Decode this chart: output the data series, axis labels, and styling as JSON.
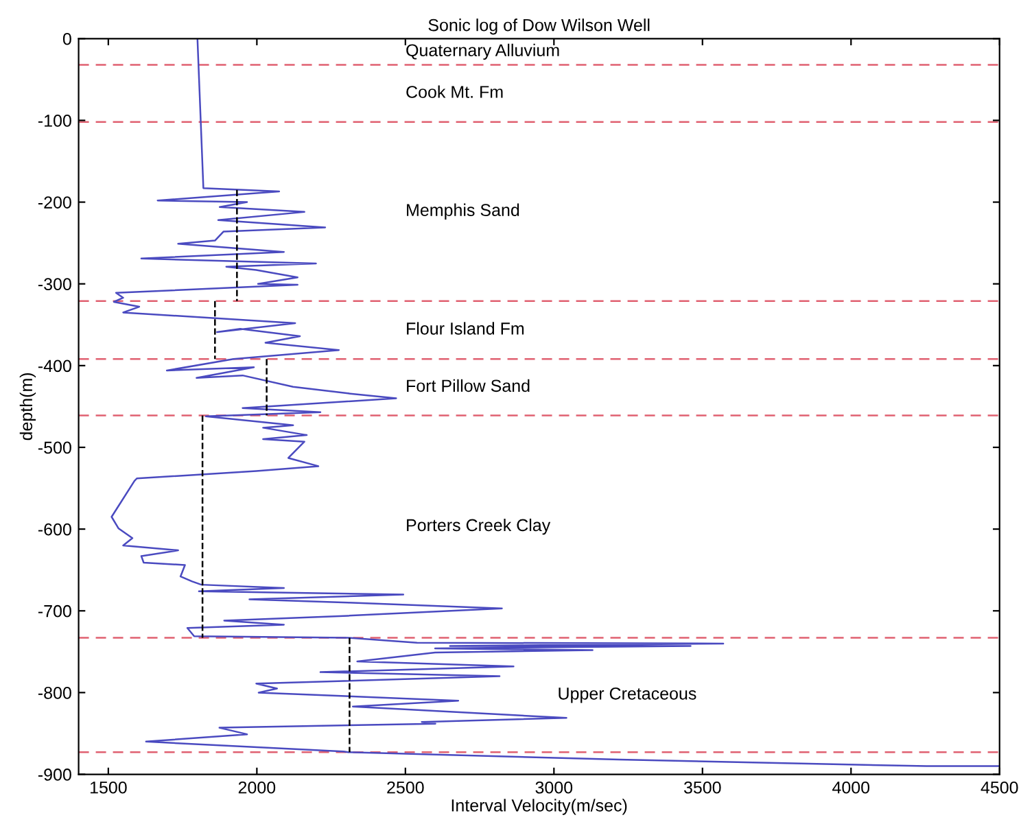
{
  "chart_data": {
    "type": "line",
    "title": "Sonic log of Dow Wilson Well",
    "xlabel": "Interval Velocity(m/sec)",
    "ylabel": "depth(m)",
    "xlim": [
      1400,
      4500
    ],
    "xticks": [
      1500,
      2000,
      2500,
      3000,
      3500,
      4000,
      4500
    ],
    "ylim": [
      -900,
      0
    ],
    "yticks": [
      -900,
      -800,
      -700,
      -600,
      -500,
      -400,
      -300,
      -200,
      -100,
      0
    ],
    "grid": false,
    "legend": false,
    "marker": "none",
    "series": [
      {
        "color": "#4a4ac0",
        "line_style": "solid",
        "x": [
          1800,
          1820,
          2075,
          1666,
          1967,
          1875,
          2160,
          1870,
          2230,
          1888,
          1859,
          1735,
          2091,
          1611,
          2199,
          1897,
          1998,
          2137,
          2004,
          2137,
          1526,
          1550,
          1519,
          1604,
          1550,
          2129,
          1866,
          1944,
          2145,
          2029,
          2276,
          1921,
          1697,
          1990,
          1797,
          1952,
          2122,
          2307,
          2469,
          1952,
          2214,
          1828,
          2122,
          2021,
          2168,
          2021,
          2160,
          2106,
          2207,
          1998,
          1596,
          1588,
          1511,
          1534,
          1581,
          1550,
          1735,
          1611,
          1619,
          1758,
          1743,
          1782,
          1813,
          2091,
          1805,
          2493,
          1975,
          2307,
          2825,
          2307,
          1890,
          2091,
          1766,
          1789,
          2307,
          2539,
          3570,
          2650,
          3460,
          2600,
          3130,
          2600,
          2338,
          2864,
          2214,
          2817,
          1998,
          2068,
          2006,
          2678,
          2323,
          3042,
          2555,
          2601,
          1874,
          1967,
          1627,
          2292,
          2307,
          3220,
          4254,
          4500
        ],
        "values": [
          0,
          -183,
          -187,
          -198,
          -200,
          -206,
          -212,
          -222,
          -231,
          -236,
          -247,
          -251,
          -261,
          -269,
          -275,
          -279,
          -283,
          -292,
          -300,
          -301,
          -311,
          -317,
          -322,
          -328,
          -335,
          -348,
          -359,
          -355,
          -364,
          -372,
          -381,
          -392,
          -406,
          -402,
          -415,
          -412,
          -426,
          -434,
          -440,
          -452,
          -457,
          -462,
          -473,
          -476,
          -485,
          -490,
          -493,
          -513,
          -523,
          -529,
          -538,
          -541,
          -585,
          -599,
          -611,
          -620,
          -626,
          -633,
          -641,
          -644,
          -658,
          -664,
          -668,
          -672,
          -676,
          -680,
          -686,
          -690,
          -697,
          -706,
          -712,
          -717,
          -721,
          -731,
          -733,
          -739,
          -740,
          -743,
          -743,
          -746,
          -748,
          -751,
          -762,
          -768,
          -775,
          -780,
          -789,
          -795,
          -800,
          -810,
          -817,
          -831,
          -836,
          -838,
          -843,
          -851,
          -860,
          -872,
          -873,
          -882,
          -890,
          -890
        ]
      },
      {
        "color": "#000000",
        "line_style": "dashed",
        "x": [
          1933,
          1933
        ],
        "values": [
          -185,
          -321
        ]
      },
      {
        "color": "#000000",
        "line_style": "dashed",
        "x": [
          1859,
          1859
        ],
        "values": [
          -321,
          -392
        ]
      },
      {
        "color": "#000000",
        "line_style": "dashed",
        "x": [
          2033,
          2033
        ],
        "values": [
          -392,
          -461
        ]
      },
      {
        "color": "#000000",
        "line_style": "dashed",
        "x": [
          1817,
          1817
        ],
        "values": [
          -461,
          -733
        ]
      },
      {
        "color": "#000000",
        "line_style": "dashed",
        "x": [
          2312,
          2312
        ],
        "values": [
          -733,
          -873
        ]
      }
    ],
    "ref_lines": [
      {
        "axis": "y",
        "value": -32,
        "color": "#e06070",
        "line_style": "dashed"
      },
      {
        "axis": "y",
        "value": -102,
        "color": "#e06070",
        "line_style": "dashed"
      },
      {
        "axis": "y",
        "value": -321,
        "color": "#e06070",
        "line_style": "dashed"
      },
      {
        "axis": "y",
        "value": -392,
        "color": "#e06070",
        "line_style": "dashed"
      },
      {
        "axis": "y",
        "value": -461,
        "color": "#e06070",
        "line_style": "dashed"
      },
      {
        "axis": "y",
        "value": -733,
        "color": "#e06070",
        "line_style": "dashed"
      },
      {
        "axis": "y",
        "value": -873,
        "color": "#e06070",
        "line_style": "dashed"
      }
    ],
    "annotations": [
      "Quaternary Alluvium",
      "Cook Mt. Fm",
      "Memphis Sand",
      "Flour Island Fm",
      "Fort Pillow Sand",
      "Porters Creek Clay",
      "Upper Cretaceous"
    ]
  }
}
